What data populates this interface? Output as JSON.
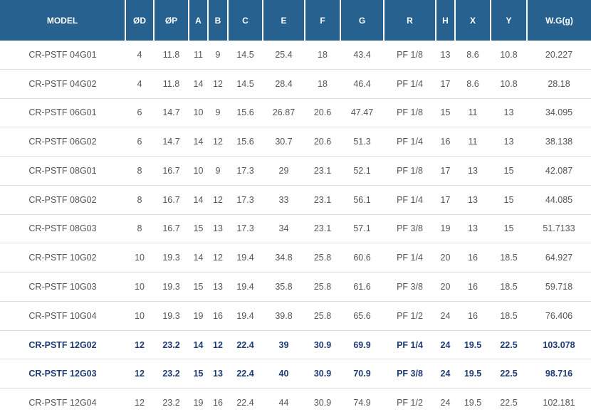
{
  "colors": {
    "header_bg": "#26618f",
    "header_text": "#ffffff",
    "body_text": "#555555",
    "highlight_text": "#1e3c74",
    "row_border": "#dedede"
  },
  "table": {
    "columns": [
      "MODEL",
      "ØD",
      "ØP",
      "A",
      "B",
      "C",
      "E",
      "F",
      "G",
      "R",
      "H",
      "X",
      "Y",
      "W.G(g)"
    ],
    "rows": [
      {
        "highlight": false,
        "cells": [
          "CR-PSTF 04G01",
          "4",
          "11.8",
          "11",
          "9",
          "14.5",
          "25.4",
          "18",
          "43.4",
          "PF 1/8",
          "13",
          "8.6",
          "10.8",
          "20.227"
        ]
      },
      {
        "highlight": false,
        "cells": [
          "CR-PSTF 04G02",
          "4",
          "11.8",
          "14",
          "12",
          "14.5",
          "28.4",
          "18",
          "46.4",
          "PF 1/4",
          "17",
          "8.6",
          "10.8",
          "28.18"
        ]
      },
      {
        "highlight": false,
        "cells": [
          "CR-PSTF 06G01",
          "6",
          "14.7",
          "10",
          "9",
          "15.6",
          "26.87",
          "20.6",
          "47.47",
          "PF 1/8",
          "15",
          "11",
          "13",
          "34.095"
        ]
      },
      {
        "highlight": false,
        "cells": [
          "CR-PSTF 06G02",
          "6",
          "14.7",
          "14",
          "12",
          "15.6",
          "30.7",
          "20.6",
          "51.3",
          "PF 1/4",
          "16",
          "11",
          "13",
          "38.138"
        ]
      },
      {
        "highlight": false,
        "cells": [
          "CR-PSTF 08G01",
          "8",
          "16.7",
          "10",
          "9",
          "17.3",
          "29",
          "23.1",
          "52.1",
          "PF 1/8",
          "17",
          "13",
          "15",
          "42.087"
        ]
      },
      {
        "highlight": false,
        "cells": [
          "CR-PSTF 08G02",
          "8",
          "16.7",
          "14",
          "12",
          "17.3",
          "33",
          "23.1",
          "56.1",
          "PF 1/4",
          "17",
          "13",
          "15",
          "44.085"
        ]
      },
      {
        "highlight": false,
        "cells": [
          "CR-PSTF 08G03",
          "8",
          "16.7",
          "15",
          "13",
          "17.3",
          "34",
          "23.1",
          "57.1",
          "PF 3/8",
          "19",
          "13",
          "15",
          "51.7133"
        ]
      },
      {
        "highlight": false,
        "cells": [
          "CR-PSTF 10G02",
          "10",
          "19.3",
          "14",
          "12",
          "19.4",
          "34.8",
          "25.8",
          "60.6",
          "PF 1/4",
          "20",
          "16",
          "18.5",
          "64.927"
        ]
      },
      {
        "highlight": false,
        "cells": [
          "CR-PSTF 10G03",
          "10",
          "19.3",
          "15",
          "13",
          "19.4",
          "35.8",
          "25.8",
          "61.6",
          "PF 3/8",
          "20",
          "16",
          "18.5",
          "59.718"
        ]
      },
      {
        "highlight": false,
        "cells": [
          "CR-PSTF 10G04",
          "10",
          "19.3",
          "19",
          "16",
          "19.4",
          "39.8",
          "25.8",
          "65.6",
          "PF 1/2",
          "24",
          "16",
          "18.5",
          "76.406"
        ]
      },
      {
        "highlight": true,
        "cells": [
          "CR-PSTF 12G02",
          "12",
          "23.2",
          "14",
          "12",
          "22.4",
          "39",
          "30.9",
          "69.9",
          "PF 1/4",
          "24",
          "19.5",
          "22.5",
          "103.078"
        ]
      },
      {
        "highlight": true,
        "cells": [
          "CR-PSTF 12G03",
          "12",
          "23.2",
          "15",
          "13",
          "22.4",
          "40",
          "30.9",
          "70.9",
          "PF 3/8",
          "24",
          "19.5",
          "22.5",
          "98.716"
        ]
      },
      {
        "highlight": false,
        "cells": [
          "CR-PSTF 12G04",
          "12",
          "23.2",
          "19",
          "16",
          "22.4",
          "44",
          "30.9",
          "74.9",
          "PF 1/2",
          "24",
          "19.5",
          "22.5",
          "102.181"
        ]
      }
    ]
  }
}
